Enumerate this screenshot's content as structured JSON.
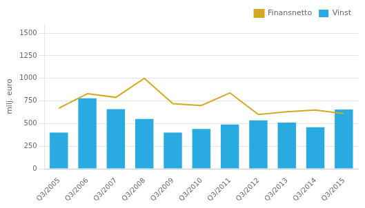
{
  "chart_data": {
    "type": "bar",
    "ylabel": "milj. euro",
    "categories": [
      "Q3/2005",
      "Q3/2006",
      "Q3/2007",
      "Q3/2008",
      "Q3/2009",
      "Q3/2010",
      "Q3/2011",
      "Q3/2012",
      "Q3/2013",
      "Q3/2014",
      "Q3/2015"
    ],
    "series": [
      {
        "name": "Vinst",
        "type": "bar",
        "color": "#29abe2",
        "values": [
          400,
          780,
          660,
          550,
          400,
          440,
          490,
          535,
          510,
          460,
          655
        ]
      },
      {
        "name": "Finansnetto",
        "type": "line",
        "color": "#d4a820",
        "values": [
          670,
          830,
          790,
          1000,
          720,
          700,
          840,
          600,
          630,
          650,
          610
        ]
      }
    ],
    "ylim": [
      0,
      1600
    ],
    "yticks": [
      0,
      250,
      500,
      750,
      1000,
      1250,
      1500
    ],
    "grid": true,
    "legend": "upper right"
  }
}
